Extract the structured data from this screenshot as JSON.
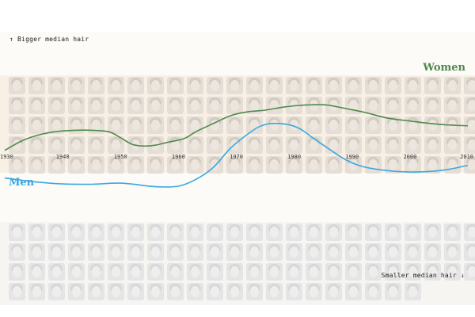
{
  "labels": {
    "top_left": "↑ Bigger median hair",
    "bottom_right": "Smaller median hair ↓"
  },
  "colors": {
    "women": "#4e8a4c",
    "men": "#3aa8df",
    "women_band": "#f8f0e4",
    "men_band": "#f6f5f2"
  },
  "chart_data": {
    "type": "line",
    "title": "",
    "xlabel": "",
    "ylabel": "",
    "x_ticks": [
      "1930",
      "1940",
      "1950",
      "1960",
      "1970",
      "1980",
      "1990",
      "2000",
      "2010"
    ],
    "xlim": [
      1930,
      2010
    ],
    "y_scale": "unlabeled relative median hair size",
    "ylim": [
      -2.6,
      4.2
    ],
    "grid": false,
    "legend": "direct labels on lines",
    "series": [
      {
        "name": "Women",
        "label_position": "right, above line",
        "x": [
          1930,
          1933,
          1936,
          1939,
          1942,
          1945,
          1948,
          1950,
          1952,
          1954,
          1956,
          1958,
          1961,
          1963,
          1966,
          1969,
          1972,
          1975,
          1978,
          1981,
          1984,
          1986,
          1989,
          1992,
          1996,
          2000,
          2003,
          2006,
          2010
        ],
        "values": [
          0.65,
          1.3,
          1.7,
          1.92,
          2.0,
          2.0,
          1.9,
          1.5,
          1.06,
          0.94,
          1.0,
          1.18,
          1.45,
          1.9,
          2.45,
          2.98,
          3.24,
          3.35,
          3.55,
          3.67,
          3.72,
          3.68,
          3.45,
          3.22,
          2.83,
          2.62,
          2.48,
          2.37,
          2.3
        ]
      },
      {
        "name": "Men",
        "label_position": "left, below line",
        "x": [
          1930,
          1935,
          1940,
          1945,
          1950,
          1955,
          1957,
          1960,
          1963,
          1966,
          1969,
          1972,
          1974,
          1976,
          1979,
          1981,
          1983,
          1986,
          1989,
          1992,
          1996,
          2000,
          2004,
          2007,
          2010
        ],
        "values": [
          -1.2,
          -1.45,
          -1.6,
          -1.62,
          -1.55,
          -1.75,
          -1.8,
          -1.75,
          -1.3,
          -0.5,
          0.8,
          1.75,
          2.25,
          2.45,
          2.38,
          2.1,
          1.55,
          0.75,
          0.0,
          -0.45,
          -0.7,
          -0.8,
          -0.75,
          -0.6,
          -0.35
        ]
      }
    ]
  }
}
